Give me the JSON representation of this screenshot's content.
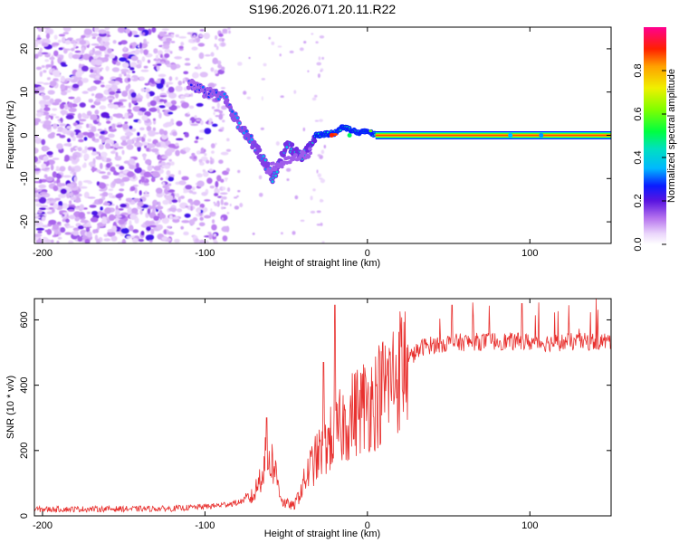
{
  "title": "S196.2026.071.20.11.R22",
  "chart_data": [
    {
      "type": "heatmap",
      "xlabel": "Height of straight line (km)",
      "ylabel": "Frequency (Hz)",
      "xlim": [
        -205,
        150
      ],
      "ylim": [
        -25,
        25
      ],
      "xticks": [
        -200,
        -100,
        0,
        100
      ],
      "yticks": [
        -20,
        -10,
        0,
        10,
        20
      ],
      "colorbar": {
        "label": "Normalized spectral amplitude",
        "range": [
          0,
          1
        ],
        "ticks": [
          "0.0",
          "0.2",
          "0.4",
          "0.6",
          "0.8"
        ],
        "tick_values": [
          0,
          0.2,
          0.4,
          0.6,
          0.8
        ]
      },
      "features": {
        "noise_region_x": [
          -205,
          -85
        ],
        "descending_trace": [
          {
            "x": -110,
            "y": 12
          },
          {
            "x": -100,
            "y": 10
          },
          {
            "x": -88,
            "y": 9
          },
          {
            "x": -80,
            "y": 3
          },
          {
            "x": -72,
            "y": -1
          },
          {
            "x": -65,
            "y": -5
          },
          {
            "x": -58,
            "y": -10
          },
          {
            "x": -50,
            "y": -2
          },
          {
            "x": -40,
            "y": -5
          },
          {
            "x": -32,
            "y": -1
          }
        ],
        "rising_trace": [
          {
            "x": -32,
            "y": 0
          },
          {
            "x": -20,
            "y": 0.5
          },
          {
            "x": -15,
            "y": 2
          },
          {
            "x": -5,
            "y": 0.5
          },
          {
            "x": 0,
            "y": 1
          },
          {
            "x": 5,
            "y": 0
          }
        ],
        "carrier_line": {
          "x_start": 5,
          "x_end": 150,
          "y": 0
        }
      }
    },
    {
      "type": "line",
      "xlabel": "Height of straight line (km)",
      "ylabel": "SNR (10 * v/v)",
      "xlim": [
        -205,
        150
      ],
      "ylim": [
        0,
        665
      ],
      "xticks": [
        -200,
        -100,
        0,
        100
      ],
      "yticks": [
        0,
        200,
        400,
        600
      ],
      "color": "#e8302e",
      "envelope": [
        {
          "x": -205,
          "y": 20
        },
        {
          "x": -120,
          "y": 22
        },
        {
          "x": -95,
          "y": 30
        },
        {
          "x": -80,
          "y": 40
        },
        {
          "x": -70,
          "y": 60
        },
        {
          "x": -62,
          "y": 180
        },
        {
          "x": -58,
          "y": 160
        },
        {
          "x": -52,
          "y": 40
        },
        {
          "x": -45,
          "y": 30
        },
        {
          "x": -40,
          "y": 90
        },
        {
          "x": -35,
          "y": 150
        },
        {
          "x": -25,
          "y": 220
        },
        {
          "x": -15,
          "y": 280
        },
        {
          "x": -5,
          "y": 330
        },
        {
          "x": 5,
          "y": 360
        },
        {
          "x": 15,
          "y": 420
        },
        {
          "x": 25,
          "y": 480
        },
        {
          "x": 35,
          "y": 520
        },
        {
          "x": 50,
          "y": 530
        },
        {
          "x": 80,
          "y": 535
        },
        {
          "x": 110,
          "y": 530
        },
        {
          "x": 150,
          "y": 535
        }
      ],
      "peaks": [
        {
          "x": -62,
          "y": 300
        },
        {
          "x": -20,
          "y": 645
        },
        {
          "x": -27,
          "y": 470
        },
        {
          "x": 52,
          "y": 645
        },
        {
          "x": 95,
          "y": 650
        }
      ]
    }
  ]
}
